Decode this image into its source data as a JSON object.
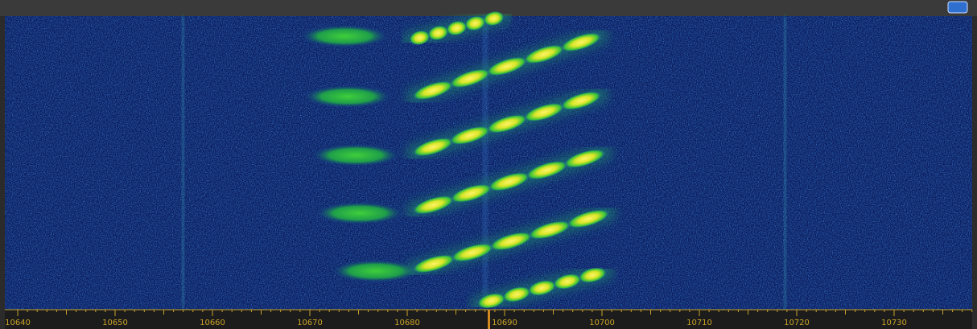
{
  "frequency_axis": {
    "ticks": [
      "10640",
      "10650",
      "10660",
      "10670",
      "10680",
      "10690",
      "10700",
      "10710",
      "10720",
      "10730"
    ]
  }
}
